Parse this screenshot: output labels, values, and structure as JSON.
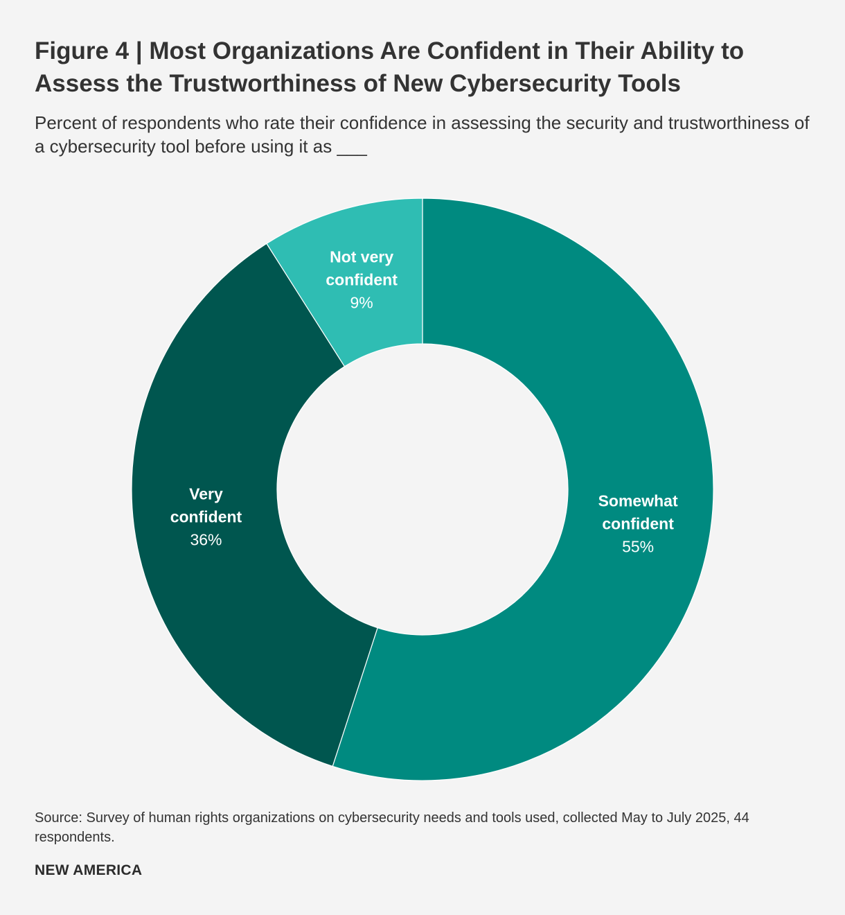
{
  "chart_data": {
    "type": "pie",
    "variant": "donut",
    "title": "Figure 4 | Most Organizations Are Confident in Their Ability to Assess the Trustworthiness of New Cybersecurity Tools",
    "subtitle": "Percent of respondents who rate their confidence in assessing the security and trustworthiness of a cybersecurity tool before using it as ___",
    "slices": [
      {
        "label": "Somewhat confident",
        "label_lines": [
          "Somewhat",
          "confident"
        ],
        "value": 55,
        "value_label": "55%",
        "color": "#008a80"
      },
      {
        "label": "Very confident",
        "label_lines": [
          "Very",
          "confident"
        ],
        "value": 36,
        "value_label": "36%",
        "color": "#00564f"
      },
      {
        "label": "Not very confident",
        "label_lines": [
          "Not very",
          "confident"
        ],
        "value": 9,
        "value_label": "9%",
        "color": "#2fbdb3"
      }
    ],
    "start_angle": "top, clockwise",
    "legend": "none (labels on slices)"
  },
  "source": "Source: Survey of human rights organizations on cybersecurity needs and tools used, collected May to July 2025, 44 respondents.",
  "brand": "NEW AMERICA"
}
